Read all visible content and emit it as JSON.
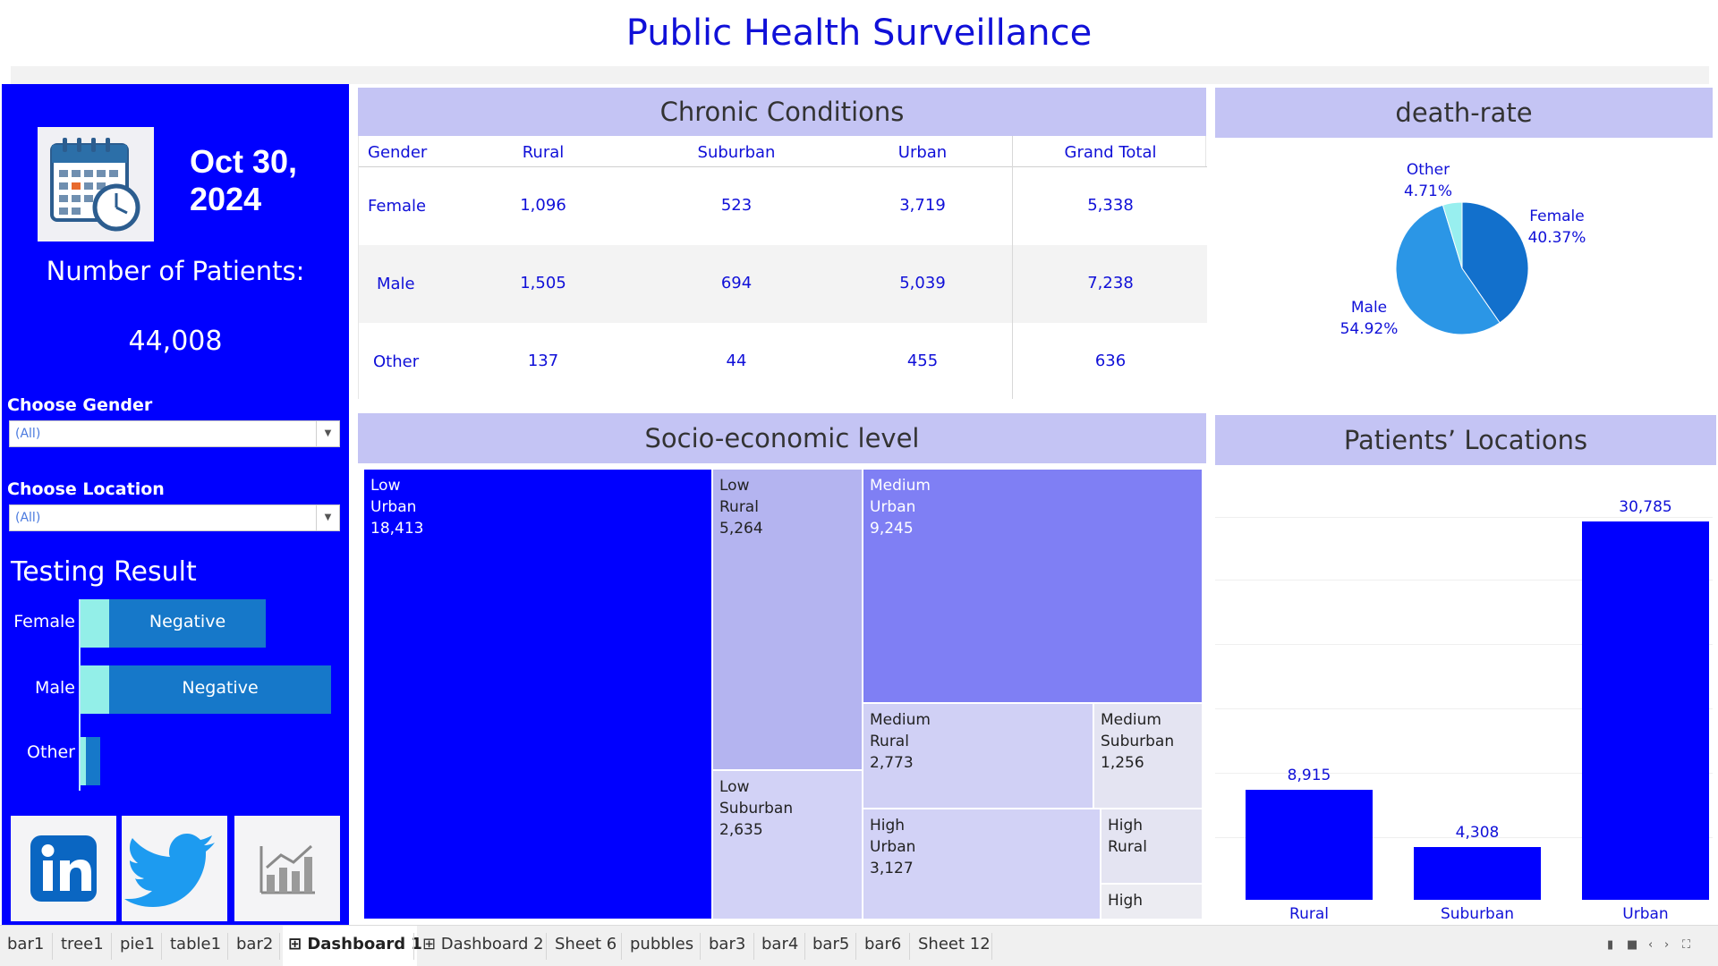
{
  "title": "Public Health Surveillance",
  "left": {
    "date": "Oct 30, 2024",
    "patients_label": "Number of Patients:",
    "patients_value": "44,008",
    "filters": [
      {
        "label": "Choose Gender",
        "value": "(All)"
      },
      {
        "label": "Choose Location",
        "value": "(All)"
      }
    ],
    "testing": {
      "title": "Testing Result",
      "rows": [
        {
          "label": "Female",
          "text": "Negative",
          "positive_fraction": 0.15,
          "total_fraction": 0.74
        },
        {
          "label": "Male",
          "text": "Negative",
          "positive_fraction": 0.15,
          "total_fraction": 1.0
        },
        {
          "label": "Other",
          "text": "",
          "positive_fraction": 0.15,
          "total_fraction": 0.08
        }
      ],
      "colors": {
        "positive": "#93efe8",
        "negative": "#1678c9"
      }
    },
    "social_icons": [
      "linkedin-icon",
      "twitter-icon",
      "analytics-chart-icon"
    ]
  },
  "chronic": {
    "title": "Chronic Conditions",
    "columns": [
      "Gender",
      "Rural",
      "Suburban",
      "Urban",
      "Grand Total"
    ],
    "rows": [
      [
        "Female",
        "1,096",
        "523",
        "3,719",
        "5,338"
      ],
      [
        "Male",
        "1,505",
        "694",
        "5,039",
        "7,238"
      ],
      [
        "Other",
        "137",
        "44",
        "455",
        "636"
      ]
    ]
  },
  "death_rate": {
    "title": "death-rate",
    "labels": [
      {
        "name": "Other",
        "pct": "4.71%"
      },
      {
        "name": "Female",
        "pct": "40.37%"
      },
      {
        "name": "Male",
        "pct": "54.92%"
      }
    ]
  },
  "socio": {
    "title": "Socio-economic level",
    "cells": [
      {
        "level": "Low",
        "loc": "Urban",
        "value": "18,413"
      },
      {
        "level": "Low",
        "loc": "Rural",
        "value": "5,264"
      },
      {
        "level": "Low",
        "loc": "Suburban",
        "value": "2,635"
      },
      {
        "level": "Medium",
        "loc": "Urban",
        "value": "9,245"
      },
      {
        "level": "Medium",
        "loc": "Rural",
        "value": "2,773"
      },
      {
        "level": "Medium",
        "loc": "Suburban",
        "value": "1,256"
      },
      {
        "level": "High",
        "loc": "Urban",
        "value": "3,127"
      },
      {
        "level": "High",
        "loc": "Rural",
        "value": ""
      },
      {
        "level": "High",
        "loc": "",
        "value": ""
      }
    ]
  },
  "locations": {
    "title": "Patients’ Locations"
  },
  "chart_data": [
    {
      "type": "pie",
      "title": "death-rate",
      "categories": [
        "Female",
        "Male",
        "Other"
      ],
      "values": [
        40.37,
        54.92,
        4.71
      ],
      "colors": [
        "#1270cc",
        "#2b96e6",
        "#98efef"
      ]
    },
    {
      "type": "bar",
      "title": "Patients’ Locations",
      "categories": [
        "Rural",
        "Suburban",
        "Urban"
      ],
      "values": [
        8915,
        4308,
        30785
      ],
      "value_labels": [
        "8,915",
        "4,308",
        "30,785"
      ],
      "ylim": [
        0,
        32000
      ],
      "grid": true,
      "color": "#0000ff"
    }
  ],
  "tabs": [
    {
      "label": "bar1"
    },
    {
      "label": "tree1"
    },
    {
      "label": "pie1"
    },
    {
      "label": "table1"
    },
    {
      "label": "bar2"
    },
    {
      "label": "Dashboard 1",
      "active": true
    },
    {
      "label": "Dashboard 2"
    },
    {
      "label": "Sheet 6"
    },
    {
      "label": "pubbles"
    },
    {
      "label": "bar3"
    },
    {
      "label": "bar4"
    },
    {
      "label": "bar5"
    },
    {
      "label": "bar6"
    },
    {
      "label": "Sheet 12"
    }
  ]
}
